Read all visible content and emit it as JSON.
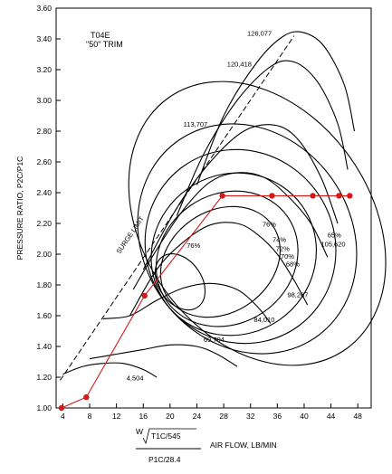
{
  "chart_data": {
    "type": "line",
    "title_lines": [
      "T04E",
      "\"50\" TRIM"
    ],
    "ylabel": "PRESSURE RATIO, P2C/P1C",
    "xlabel": "AIR FLOW, LB/MIN",
    "xlabel_formula": {
      "w": "W",
      "numerator": "T1C/545",
      "denominator": "P1C/28.4"
    },
    "xlim": [
      3,
      50
    ],
    "ylim": [
      1.0,
      3.6
    ],
    "x_ticks": [
      4,
      8,
      12,
      16,
      20,
      24,
      28,
      32,
      36,
      40,
      44,
      48
    ],
    "y_ticks": [
      "1.00",
      "1.20",
      "1.40",
      "1.60",
      "1.80",
      "2.00",
      "2.20",
      "2.40",
      "2.60",
      "2.80",
      "3.00",
      "3.20",
      "3.40",
      "3.60"
    ],
    "surge_limit_label": "SURGE LIMIT",
    "surge_line": [
      [
        3.6,
        1.18
      ],
      [
        38.5,
        3.42
      ]
    ],
    "speed_lines": [
      {
        "label": "126,077",
        "points": [
          [
            24,
            2.45
          ],
          [
            28,
            2.9
          ],
          [
            33,
            3.25
          ],
          [
            37,
            3.42
          ],
          [
            40,
            3.44
          ],
          [
            43,
            3.35
          ],
          [
            46,
            3.1
          ],
          [
            47.5,
            2.8
          ]
        ]
      },
      {
        "label": "120,418",
        "points": [
          [
            21,
            2.25
          ],
          [
            25,
            2.65
          ],
          [
            30,
            3.0
          ],
          [
            35,
            3.22
          ],
          [
            38.5,
            3.25
          ],
          [
            42,
            3.12
          ],
          [
            45,
            2.85
          ],
          [
            46.5,
            2.55
          ]
        ]
      },
      {
        "label": "113,707",
        "points": [
          [
            16,
            1.9
          ],
          [
            21,
            2.3
          ],
          [
            26,
            2.6
          ],
          [
            31,
            2.8
          ],
          [
            35.5,
            2.84
          ],
          [
            39,
            2.75
          ],
          [
            42.5,
            2.5
          ],
          [
            45,
            2.2
          ]
        ]
      },
      {
        "label": "105,620",
        "points": [
          [
            14.5,
            1.77
          ],
          [
            18,
            2.03
          ],
          [
            22,
            2.29
          ],
          [
            26,
            2.47
          ],
          [
            30,
            2.53
          ],
          [
            34,
            2.5
          ],
          [
            37.5,
            2.38
          ],
          [
            41,
            2.2
          ],
          [
            43.5,
            1.98
          ]
        ]
      },
      {
        "label": "98,267",
        "points": [
          [
            14,
            1.6
          ],
          [
            18,
            1.9
          ],
          [
            22,
            2.08
          ],
          [
            26,
            2.19
          ],
          [
            30,
            2.2
          ],
          [
            33,
            2.13
          ],
          [
            36,
            2.0
          ],
          [
            38.5,
            1.83
          ],
          [
            40.5,
            1.67
          ]
        ]
      },
      {
        "label": "84,010",
        "points": [
          [
            10,
            1.58
          ],
          [
            14,
            1.6
          ],
          [
            18,
            1.7
          ],
          [
            22,
            1.78
          ],
          [
            26,
            1.81
          ],
          [
            30,
            1.77
          ],
          [
            33,
            1.66
          ],
          [
            35,
            1.55
          ]
        ]
      },
      {
        "label": "69,704",
        "points": [
          [
            8,
            1.32
          ],
          [
            12,
            1.35
          ],
          [
            16,
            1.38
          ],
          [
            20,
            1.41
          ],
          [
            24,
            1.4
          ],
          [
            27,
            1.35
          ],
          [
            30,
            1.27
          ]
        ]
      },
      {
        "label": "4,504",
        "points": [
          [
            4,
            1.22
          ],
          [
            7,
            1.27
          ],
          [
            10,
            1.29
          ],
          [
            13,
            1.29
          ],
          [
            16,
            1.25
          ],
          [
            18,
            1.2
          ]
        ]
      }
    ],
    "speed_label_positions": [
      [
        31.5,
        3.42
      ],
      [
        28.5,
        3.22
      ],
      [
        22,
        2.83
      ],
      [
        42.5,
        2.05
      ],
      [
        37.5,
        1.72
      ],
      [
        32.5,
        1.56
      ],
      [
        25,
        1.43
      ],
      [
        13.5,
        1.18
      ]
    ],
    "efficiency_islands": [
      {
        "label": "76%",
        "center": [
          21.5,
          1.82
        ],
        "rx": 3.2,
        "ry": 0.2,
        "label_at": [
          23.5,
          2.04
        ]
      },
      {
        "label": "76%",
        "center": [
          27.5,
          1.95
        ],
        "rx": 9.5,
        "ry": 0.33,
        "label_at": [
          34.8,
          2.18
        ]
      },
      {
        "label": "74%",
        "center": [
          28.5,
          1.97
        ],
        "rx": 11.0,
        "ry": 0.42,
        "label_at": [
          36.3,
          2.08
        ]
      },
      {
        "label": "72%",
        "center": [
          29.5,
          2.0
        ],
        "rx": 12.5,
        "ry": 0.52,
        "label_at": [
          36.8,
          2.02
        ]
      },
      {
        "label": "70%",
        "center": [
          30.5,
          2.05
        ],
        "rx": 14.0,
        "ry": 0.64,
        "label_at": [
          37.5,
          1.97
        ]
      },
      {
        "label": "68%",
        "center": [
          31.5,
          2.1
        ],
        "rx": 15.5,
        "ry": 0.78,
        "label_at": [
          38.3,
          1.92
        ]
      },
      {
        "label": "65%",
        "center": [
          33.0,
          2.2
        ],
        "rx": 17.0,
        "ry": 1.0,
        "label_at": [
          44.5,
          2.11
        ]
      }
    ],
    "operating_line": {
      "color": "#d01a1a",
      "points": [
        [
          3.8,
          1.0
        ],
        [
          7.5,
          1.07
        ],
        [
          16.2,
          1.73
        ],
        [
          27.8,
          2.38
        ],
        [
          35.2,
          2.38
        ],
        [
          41.3,
          2.38
        ],
        [
          45.2,
          2.38
        ],
        [
          46.8,
          2.38
        ]
      ]
    },
    "grid": false
  }
}
